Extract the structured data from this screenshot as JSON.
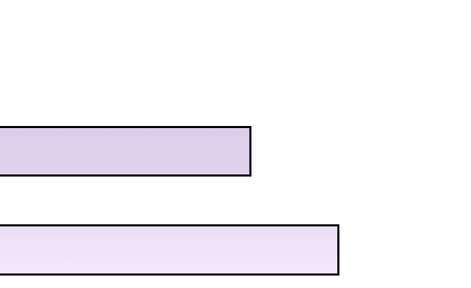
{
  "shapes": {
    "bars": [
      {
        "fill_top": "#dccdea",
        "fill_bottom": "#e0d2ec",
        "border": "#000000"
      },
      {
        "fill_top": "#ecdff6",
        "fill_bottom": "#f3e8fa",
        "border": "#000000"
      }
    ]
  }
}
